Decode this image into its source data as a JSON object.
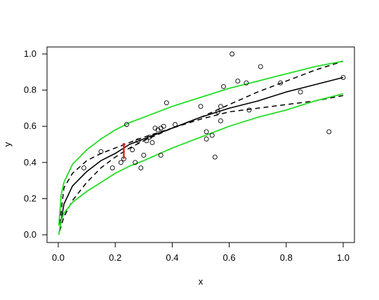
{
  "chart_data": {
    "type": "scatter",
    "title": "",
    "xlabel": "x",
    "ylabel": "y",
    "xlim": [
      0.0,
      1.0
    ],
    "ylim": [
      0.0,
      1.0
    ],
    "xticks": [
      "0.0",
      "0.2",
      "0.4",
      "0.6",
      "0.8",
      "1.0"
    ],
    "yticks": [
      "0.0",
      "0.2",
      "0.4",
      "0.6",
      "0.8",
      "1.0"
    ],
    "grid": false,
    "legend": "none",
    "colors": {
      "points": "#000000",
      "fit": "#000000",
      "band_dashed": "#000000",
      "band_outer": "#22dd22",
      "marker": "#dd2222"
    },
    "points": [
      [
        0.09,
        0.37
      ],
      [
        0.15,
        0.46
      ],
      [
        0.19,
        0.37
      ],
      [
        0.22,
        0.4
      ],
      [
        0.23,
        0.42
      ],
      [
        0.24,
        0.61
      ],
      [
        0.26,
        0.47
      ],
      [
        0.27,
        0.4
      ],
      [
        0.28,
        0.52
      ],
      [
        0.29,
        0.37
      ],
      [
        0.3,
        0.44
      ],
      [
        0.31,
        0.52
      ],
      [
        0.32,
        0.54
      ],
      [
        0.33,
        0.51
      ],
      [
        0.34,
        0.59
      ],
      [
        0.35,
        0.58
      ],
      [
        0.36,
        0.44
      ],
      [
        0.36,
        0.59
      ],
      [
        0.37,
        0.6
      ],
      [
        0.38,
        0.73
      ],
      [
        0.41,
        0.61
      ],
      [
        0.5,
        0.71
      ],
      [
        0.52,
        0.53
      ],
      [
        0.52,
        0.57
      ],
      [
        0.54,
        0.55
      ],
      [
        0.55,
        0.43
      ],
      [
        0.56,
        0.68
      ],
      [
        0.57,
        0.71
      ],
      [
        0.57,
        0.63
      ],
      [
        0.58,
        0.82
      ],
      [
        0.61,
        1.0
      ],
      [
        0.63,
        0.85
      ],
      [
        0.66,
        0.84
      ],
      [
        0.67,
        0.69
      ],
      [
        0.71,
        0.93
      ],
      [
        0.78,
        0.84
      ],
      [
        0.85,
        0.79
      ],
      [
        0.95,
        0.57
      ],
      [
        1.0,
        0.87
      ]
    ],
    "series": [
      {
        "role": "fit",
        "x": [
          0.005,
          0.02,
          0.05,
          0.1,
          0.15,
          0.2,
          0.25,
          0.3,
          0.4,
          0.5,
          0.6,
          0.7,
          0.8,
          0.9,
          1.0
        ],
        "y": [
          0.03,
          0.17,
          0.27,
          0.35,
          0.41,
          0.45,
          0.5,
          0.53,
          0.59,
          0.65,
          0.7,
          0.74,
          0.79,
          0.83,
          0.87
        ]
      },
      {
        "role": "dashed-upper",
        "x": [
          0.005,
          0.02,
          0.05,
          0.1,
          0.15,
          0.2,
          0.25,
          0.3,
          0.4,
          0.5,
          0.6,
          0.7,
          0.8,
          0.9,
          1.0
        ],
        "y": [
          0.06,
          0.26,
          0.34,
          0.41,
          0.45,
          0.48,
          0.51,
          0.54,
          0.59,
          0.65,
          0.72,
          0.79,
          0.85,
          0.91,
          0.96
        ]
      },
      {
        "role": "dashed-lower",
        "x": [
          0.005,
          0.02,
          0.05,
          0.1,
          0.15,
          0.2,
          0.25,
          0.3,
          0.4,
          0.5,
          0.6,
          0.7,
          0.8,
          0.9,
          1.0
        ],
        "y": [
          0.02,
          0.1,
          0.19,
          0.29,
          0.37,
          0.43,
          0.48,
          0.52,
          0.59,
          0.64,
          0.68,
          0.7,
          0.72,
          0.74,
          0.77
        ]
      },
      {
        "role": "green-upper",
        "x": [
          0.002,
          0.01,
          0.02,
          0.05,
          0.1,
          0.15,
          0.2,
          0.25,
          0.3,
          0.4,
          0.5,
          0.6,
          0.7,
          0.8,
          0.9,
          1.0
        ],
        "y": [
          0.05,
          0.22,
          0.29,
          0.39,
          0.47,
          0.53,
          0.58,
          0.62,
          0.65,
          0.71,
          0.76,
          0.81,
          0.85,
          0.89,
          0.93,
          0.96
        ]
      },
      {
        "role": "green-lower",
        "x": [
          0.002,
          0.01,
          0.02,
          0.05,
          0.1,
          0.15,
          0.2,
          0.25,
          0.3,
          0.4,
          0.5,
          0.6,
          0.7,
          0.8,
          0.9,
          1.0
        ],
        "y": [
          0.0,
          0.08,
          0.12,
          0.18,
          0.24,
          0.29,
          0.34,
          0.38,
          0.41,
          0.48,
          0.54,
          0.6,
          0.65,
          0.69,
          0.74,
          0.78
        ]
      }
    ],
    "marker_segment": {
      "x": 0.23,
      "y0": 0.42,
      "y1": 0.5
    }
  }
}
